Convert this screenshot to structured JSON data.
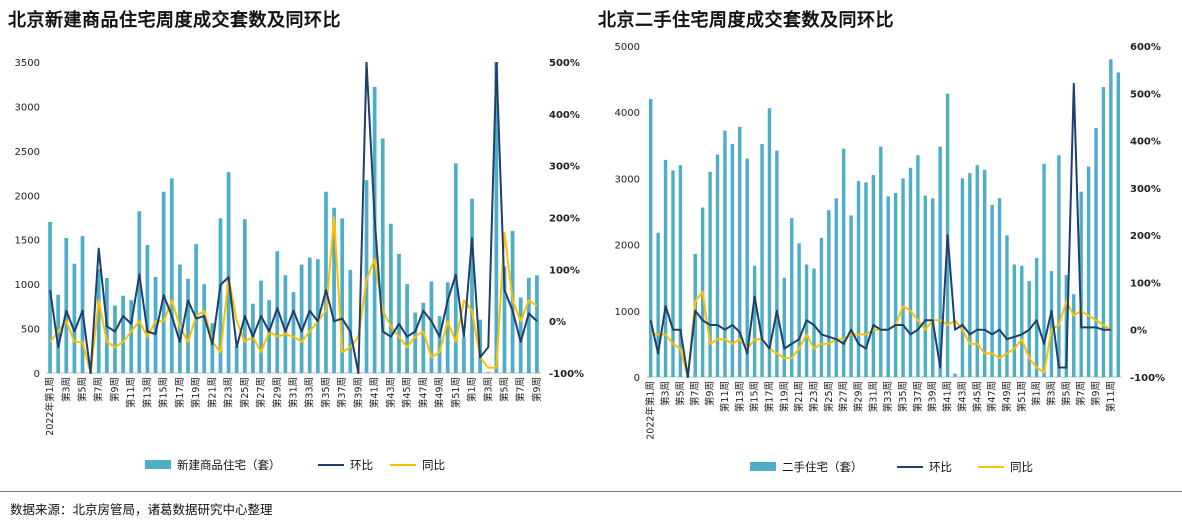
{
  "source_note": "数据来源：北京房管局，诸葛数据研究中心整理",
  "colors": {
    "bar": "#4eaec8",
    "mom": "#1f3f6e",
    "yoy": "#ffc000"
  },
  "chart_data": [
    {
      "title": "北京新建商品住宅周度成交套数及同环比",
      "type": "bar",
      "legend": [
        "新建商品住宅（套）",
        "环比",
        "同比"
      ],
      "legend_placement": "bottom",
      "grid": false,
      "y_left": {
        "ylim": [
          0,
          3500
        ],
        "ticks": [
          "0",
          "500",
          "1000",
          "1500",
          "2000",
          "2500",
          "3000",
          "3500"
        ]
      },
      "y_right": {
        "ylim": [
          -100,
          500
        ],
        "ticks": [
          "-100%",
          "0%",
          "100%",
          "200%",
          "300%",
          "400%",
          "500%"
        ]
      },
      "x_labels": [
        "2022年第1周",
        "第3周",
        "第5周",
        "第7周",
        "第9周",
        "第11周",
        "第13周",
        "第15周",
        "第17周",
        "第19周",
        "第21周",
        "第23周",
        "第25周",
        "第27周",
        "第29周",
        "第31周",
        "第33周",
        "第35周",
        "第37周",
        "第39周",
        "第41周",
        "第43周",
        "第45周",
        "第47周",
        "第49周",
        "第51周",
        "第1周",
        "第3周",
        "第5周",
        "第7周",
        "第9周",
        "第11周"
      ],
      "series": [
        {
          "name": "新建商品住宅（套）",
          "type": "bar",
          "axis": "left",
          "values": [
            1700,
            880,
            1520,
            1230,
            1540,
            10,
            1170,
            1070,
            760,
            870,
            820,
            1820,
            1440,
            1080,
            2040,
            2190,
            1220,
            1060,
            1450,
            1000,
            560,
            1740,
            2260,
            300,
            1730,
            780,
            1040,
            820,
            1370,
            1100,
            910,
            1220,
            1300,
            1280,
            2040,
            1860,
            1740,
            1160,
            10,
            2170,
            3220,
            2640,
            1680,
            1340,
            1000,
            680,
            790,
            1030,
            640,
            1020,
            2360,
            400,
            1960,
            600,
            10,
            3500,
            1200,
            1600,
            850,
            1070,
            1100
          ]
        },
        {
          "name": "环比",
          "type": "line",
          "axis": "right",
          "values": [
            60,
            -50,
            20,
            -20,
            20,
            -100,
            140,
            -10,
            -20,
            10,
            -5,
            90,
            -20,
            -25,
            50,
            10,
            -40,
            40,
            5,
            10,
            -45,
            70,
            85,
            -50,
            10,
            -30,
            10,
            -20,
            25,
            -20,
            20,
            -20,
            20,
            0,
            60,
            0,
            5,
            -20,
            -100,
            500,
            200,
            -20,
            -30,
            -5,
            -30,
            -20,
            20,
            0,
            -30,
            40,
            90,
            -30,
            160,
            -70,
            -50,
            500,
            60,
            20,
            -40,
            15,
            0
          ]
        },
        {
          "name": "同比",
          "type": "line",
          "axis": "right",
          "values": [
            -40,
            -20,
            0,
            -40,
            -40,
            -100,
            40,
            -40,
            -50,
            -40,
            -20,
            0,
            -30,
            0,
            0,
            40,
            -10,
            -40,
            10,
            20,
            -40,
            -60,
            85,
            0,
            -40,
            -30,
            -60,
            -20,
            -30,
            -25,
            -30,
            -40,
            -20,
            0,
            20,
            200,
            -60,
            -50,
            -30,
            80,
            120,
            20,
            -10,
            -30,
            -50,
            -30,
            -20,
            -70,
            -60,
            0,
            -40,
            40,
            20,
            -70,
            -90,
            -90,
            170,
            40,
            0,
            40,
            30
          ]
        }
      ]
    },
    {
      "title": "北京二手住宅周度成交套数及同环比",
      "type": "bar",
      "legend": [
        "二手住宅（套）",
        "环比",
        "同比"
      ],
      "legend_placement": "bottom",
      "grid": false,
      "y_left": {
        "ylim": [
          0,
          5000
        ],
        "ticks": [
          "0",
          "1000",
          "2000",
          "3000",
          "4000",
          "5000"
        ]
      },
      "y_right": {
        "ylim": [
          -100,
          600
        ],
        "ticks": [
          "-100%",
          "0%",
          "100%",
          "200%",
          "300%",
          "400%",
          "500%",
          "600%"
        ]
      },
      "x_labels": [
        "2022年第1周",
        "第3周",
        "第5周",
        "第7周",
        "第9周",
        "第11周",
        "第13周",
        "第15周",
        "第17周",
        "第19周",
        "第21周",
        "第23周",
        "第25周",
        "第27周",
        "第29周",
        "第31周",
        "第33周",
        "第35周",
        "第37周",
        "第39周",
        "第41周",
        "第43周",
        "第45周",
        "第47周",
        "第49周",
        "第51周",
        "第1周",
        "第3周",
        "第5周",
        "第7周",
        "第9周",
        "第11周"
      ],
      "series": [
        {
          "name": "二手住宅（套）",
          "type": "bar",
          "axis": "left",
          "values": [
            4200,
            2180,
            3280,
            3120,
            3200,
            30,
            1860,
            2560,
            3100,
            3360,
            3720,
            3520,
            3780,
            3300,
            1680,
            3520,
            4060,
            3420,
            1500,
            2400,
            2020,
            1700,
            1640,
            2100,
            2520,
            2700,
            3450,
            2440,
            2960,
            2940,
            3050,
            3480,
            2730,
            2780,
            3000,
            3160,
            3350,
            2740,
            2700,
            3480,
            4280,
            50,
            3000,
            3080,
            3200,
            3130,
            2600,
            2700,
            2140,
            1700,
            1680,
            1450,
            1800,
            3220,
            1600,
            3350,
            1540,
            1250,
            2800,
            3180,
            3760,
            4380,
            4800,
            4600
          ]
        },
        {
          "name": "环比",
          "type": "line",
          "axis": "right",
          "values": [
            20,
            -50,
            50,
            0,
            0,
            -100,
            40,
            20,
            10,
            10,
            0,
            10,
            -5,
            -50,
            70,
            -20,
            -40,
            40,
            -40,
            -30,
            -20,
            20,
            10,
            -10,
            -15,
            -20,
            -30,
            0,
            -30,
            -40,
            10,
            0,
            0,
            10,
            10,
            -10,
            0,
            20,
            20,
            -80,
            200,
            0,
            10,
            -10,
            0,
            0,
            -10,
            0,
            -20,
            -15,
            -10,
            0,
            20,
            -30,
            40,
            -80,
            -80,
            520,
            5,
            5,
            5,
            0,
            0
          ]
        },
        {
          "name": "同比",
          "type": "line",
          "axis": "right",
          "values": [
            -10,
            -10,
            -10,
            -30,
            -40,
            -100,
            60,
            80,
            -30,
            -20,
            -20,
            -30,
            -20,
            -40,
            -20,
            -20,
            -40,
            -50,
            -60,
            -60,
            -40,
            -10,
            -40,
            -30,
            -30,
            -20,
            -20,
            -10,
            -10,
            -10,
            0,
            0,
            0,
            10,
            50,
            40,
            20,
            0,
            20,
            20,
            10,
            20,
            0,
            -30,
            -30,
            -50,
            -50,
            -60,
            -50,
            -40,
            -20,
            -60,
            -80,
            -90,
            0,
            10,
            60,
            30,
            40,
            30,
            20,
            10,
            0
          ]
        }
      ]
    }
  ]
}
